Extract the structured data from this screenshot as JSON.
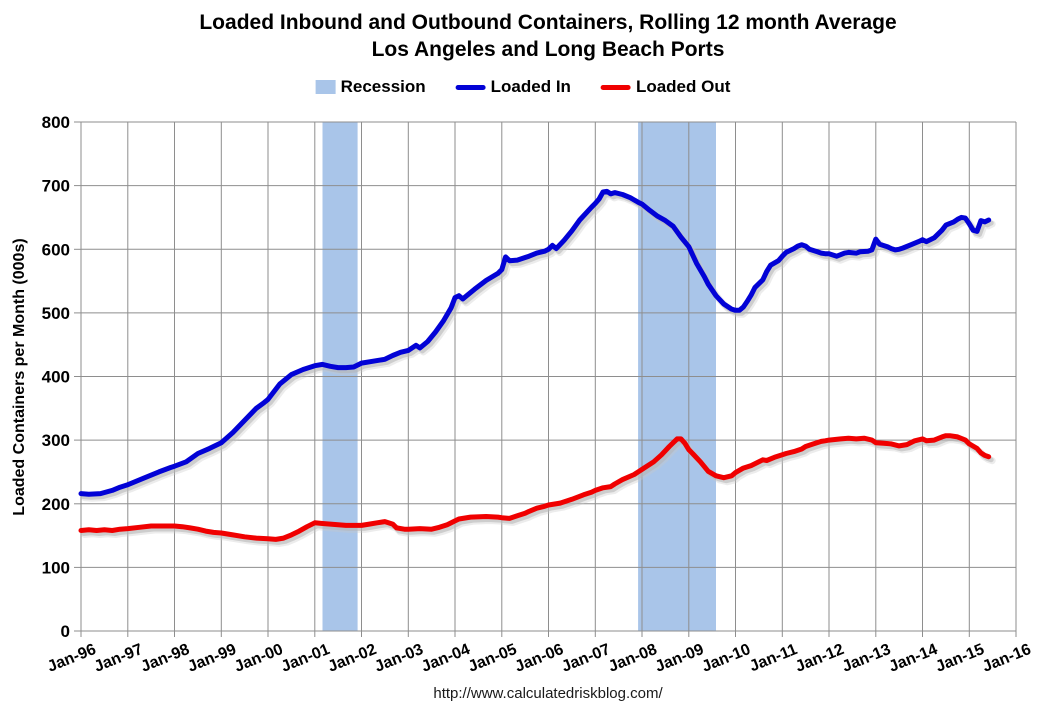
{
  "page": {
    "title_line1": "Loaded Inbound and Outbound Containers, Rolling 12 month Average",
    "title_line2": "Los Angeles and Long Beach Ports",
    "footer_url": "http://www.calculatedriskblog.com/"
  },
  "legend": {
    "items": [
      {
        "label": "Recession",
        "swatch": "recession-box",
        "color": "#a9c5e9"
      },
      {
        "label": "Loaded In",
        "swatch": "line",
        "color": "#0202d6"
      },
      {
        "label": "Loaded Out",
        "swatch": "line",
        "color": "#f00000"
      }
    ]
  },
  "chart_data": {
    "type": "line",
    "title": "Loaded Inbound and Outbound Containers, Rolling 12 month Average — Los Angeles and Long Beach Ports",
    "xlabel": "",
    "ylabel": "Loaded Containers per Month (000s)",
    "ylim": [
      0,
      800
    ],
    "yticks": [
      0,
      100,
      200,
      300,
      400,
      500,
      600,
      700,
      800
    ],
    "grid": true,
    "legend_position": "top",
    "x_unit": "months since Jan-1996 (0 = Jan-96)",
    "xtick_labels": [
      "Jan-96",
      "Jan-97",
      "Jan-98",
      "Jan-99",
      "Jan-00",
      "Jan-01",
      "Jan-02",
      "Jan-03",
      "Jan-04",
      "Jan-05",
      "Jan-06",
      "Jan-07",
      "Jan-08",
      "Jan-09",
      "Jan-10",
      "Jan-11",
      "Jan-12",
      "Jan-13",
      "Jan-14",
      "Jan-15",
      "Jan-16"
    ],
    "recession_bands_months": [
      [
        62,
        71
      ],
      [
        143,
        163
      ]
    ],
    "recession_color": "#a9c5e9",
    "grid_color": "#8e8e8e",
    "series": [
      {
        "name": "Loaded In",
        "color": "#0202d6",
        "points": [
          [
            0,
            216
          ],
          [
            2,
            215
          ],
          [
            5,
            216
          ],
          [
            8,
            221
          ],
          [
            10,
            226
          ],
          [
            12,
            230
          ],
          [
            16,
            240
          ],
          [
            20,
            250
          ],
          [
            23,
            257
          ],
          [
            24,
            259
          ],
          [
            27,
            266
          ],
          [
            30,
            279
          ],
          [
            33,
            287
          ],
          [
            36,
            296
          ],
          [
            39,
            312
          ],
          [
            42,
            331
          ],
          [
            45,
            350
          ],
          [
            47,
            359
          ],
          [
            48,
            364
          ],
          [
            51,
            388
          ],
          [
            54,
            403
          ],
          [
            57,
            411
          ],
          [
            59,
            415
          ],
          [
            60,
            417
          ],
          [
            62,
            419
          ],
          [
            64,
            416
          ],
          [
            66,
            414
          ],
          [
            68,
            414
          ],
          [
            70,
            415
          ],
          [
            72,
            421
          ],
          [
            75,
            424
          ],
          [
            78,
            427
          ],
          [
            80,
            433
          ],
          [
            82,
            438
          ],
          [
            84,
            441
          ],
          [
            86,
            449
          ],
          [
            87,
            445
          ],
          [
            89,
            455
          ],
          [
            91,
            470
          ],
          [
            93,
            487
          ],
          [
            95,
            508
          ],
          [
            96,
            524
          ],
          [
            97,
            527
          ],
          [
            98,
            522
          ],
          [
            99,
            527
          ],
          [
            101,
            537
          ],
          [
            104,
            551
          ],
          [
            107,
            562
          ],
          [
            108,
            568
          ],
          [
            109,
            588
          ],
          [
            110,
            582
          ],
          [
            112,
            583
          ],
          [
            115,
            589
          ],
          [
            117,
            594
          ],
          [
            119,
            597
          ],
          [
            120,
            600
          ],
          [
            121,
            606
          ],
          [
            122,
            601
          ],
          [
            124,
            614
          ],
          [
            126,
            629
          ],
          [
            128,
            646
          ],
          [
            131,
            666
          ],
          [
            132,
            672
          ],
          [
            133,
            679
          ],
          [
            134,
            690
          ],
          [
            135,
            691
          ],
          [
            136,
            687
          ],
          [
            137,
            689
          ],
          [
            139,
            686
          ],
          [
            141,
            681
          ],
          [
            143,
            674
          ],
          [
            144,
            671
          ],
          [
            146,
            661
          ],
          [
            148,
            652
          ],
          [
            150,
            645
          ],
          [
            152,
            636
          ],
          [
            154,
            619
          ],
          [
            156,
            604
          ],
          [
            158,
            578
          ],
          [
            160,
            557
          ],
          [
            161,
            545
          ],
          [
            163,
            527
          ],
          [
            165,
            514
          ],
          [
            167,
            506
          ],
          [
            168,
            504
          ],
          [
            169,
            504
          ],
          [
            170,
            509
          ],
          [
            171,
            518
          ],
          [
            172,
            528
          ],
          [
            173,
            540
          ],
          [
            175,
            552
          ],
          [
            176,
            565
          ],
          [
            177,
            575
          ],
          [
            179,
            582
          ],
          [
            180,
            589
          ],
          [
            181,
            595
          ],
          [
            183,
            601
          ],
          [
            184,
            605
          ],
          [
            185,
            607
          ],
          [
            186,
            605
          ],
          [
            187,
            600
          ],
          [
            189,
            596
          ],
          [
            190,
            594
          ],
          [
            191,
            593
          ],
          [
            192,
            593
          ],
          [
            194,
            589
          ],
          [
            196,
            594
          ],
          [
            197,
            595
          ],
          [
            199,
            594
          ],
          [
            200,
            596
          ],
          [
            202,
            597
          ],
          [
            203,
            599
          ],
          [
            204,
            616
          ],
          [
            205,
            608
          ],
          [
            207,
            604
          ],
          [
            208,
            601
          ],
          [
            209,
            599
          ],
          [
            210,
            600
          ],
          [
            211,
            602
          ],
          [
            213,
            607
          ],
          [
            215,
            612
          ],
          [
            216,
            615
          ],
          [
            217,
            612
          ],
          [
            219,
            618
          ],
          [
            221,
            630
          ],
          [
            222,
            638
          ],
          [
            224,
            643
          ],
          [
            225,
            647
          ],
          [
            226,
            650
          ],
          [
            227,
            649
          ],
          [
            228,
            640
          ],
          [
            229,
            630
          ],
          [
            230,
            628
          ],
          [
            231,
            645
          ],
          [
            232,
            643
          ],
          [
            233,
            646
          ]
        ]
      },
      {
        "name": "Loaded Out",
        "color": "#f00000",
        "points": [
          [
            0,
            158
          ],
          [
            2,
            159
          ],
          [
            4,
            158
          ],
          [
            6,
            159
          ],
          [
            8,
            158
          ],
          [
            10,
            160
          ],
          [
            12,
            161
          ],
          [
            15,
            163
          ],
          [
            18,
            165
          ],
          [
            21,
            165
          ],
          [
            24,
            165
          ],
          [
            26,
            164
          ],
          [
            28,
            162
          ],
          [
            30,
            160
          ],
          [
            32,
            157
          ],
          [
            34,
            155
          ],
          [
            36,
            154
          ],
          [
            39,
            151
          ],
          [
            42,
            148
          ],
          [
            45,
            146
          ],
          [
            48,
            145
          ],
          [
            50,
            144
          ],
          [
            52,
            146
          ],
          [
            54,
            151
          ],
          [
            56,
            157
          ],
          [
            58,
            164
          ],
          [
            60,
            170
          ],
          [
            62,
            169
          ],
          [
            64,
            168
          ],
          [
            66,
            167
          ],
          [
            68,
            166
          ],
          [
            70,
            166
          ],
          [
            72,
            166
          ],
          [
            74,
            168
          ],
          [
            76,
            170
          ],
          [
            78,
            172
          ],
          [
            80,
            168
          ],
          [
            81,
            162
          ],
          [
            83,
            160
          ],
          [
            84,
            160
          ],
          [
            87,
            161
          ],
          [
            90,
            160
          ],
          [
            92,
            163
          ],
          [
            94,
            167
          ],
          [
            96,
            173
          ],
          [
            97,
            176
          ],
          [
            100,
            179
          ],
          [
            104,
            180
          ],
          [
            107,
            179
          ],
          [
            108,
            178
          ],
          [
            110,
            177
          ],
          [
            112,
            181
          ],
          [
            114,
            185
          ],
          [
            115,
            188
          ],
          [
            117,
            193
          ],
          [
            119,
            196
          ],
          [
            120,
            198
          ],
          [
            123,
            201
          ],
          [
            126,
            207
          ],
          [
            129,
            214
          ],
          [
            131,
            218
          ],
          [
            132,
            221
          ],
          [
            134,
            225
          ],
          [
            136,
            227
          ],
          [
            137,
            231
          ],
          [
            139,
            238
          ],
          [
            142,
            246
          ],
          [
            143,
            250
          ],
          [
            144,
            254
          ],
          [
            147,
            266
          ],
          [
            149,
            277
          ],
          [
            151,
            290
          ],
          [
            153,
            302
          ],
          [
            154,
            302
          ],
          [
            155,
            295
          ],
          [
            156,
            285
          ],
          [
            157,
            279
          ],
          [
            159,
            266
          ],
          [
            161,
            251
          ],
          [
            163,
            244
          ],
          [
            165,
            241
          ],
          [
            167,
            244
          ],
          [
            168,
            249
          ],
          [
            170,
            256
          ],
          [
            172,
            260
          ],
          [
            174,
            266
          ],
          [
            175,
            269
          ],
          [
            176,
            268
          ],
          [
            178,
            273
          ],
          [
            180,
            277
          ],
          [
            181,
            279
          ],
          [
            183,
            282
          ],
          [
            185,
            286
          ],
          [
            186,
            290
          ],
          [
            188,
            294
          ],
          [
            190,
            298
          ],
          [
            191,
            299
          ],
          [
            192,
            300
          ],
          [
            195,
            302
          ],
          [
            197,
            303
          ],
          [
            199,
            302
          ],
          [
            201,
            303
          ],
          [
            203,
            300
          ],
          [
            204,
            296
          ],
          [
            206,
            295
          ],
          [
            208,
            294
          ],
          [
            210,
            291
          ],
          [
            212,
            293
          ],
          [
            214,
            299
          ],
          [
            216,
            302
          ],
          [
            217,
            299
          ],
          [
            219,
            300
          ],
          [
            221,
            305
          ],
          [
            222,
            307
          ],
          [
            223,
            307
          ],
          [
            225,
            305
          ],
          [
            227,
            300
          ],
          [
            228,
            294
          ],
          [
            230,
            287
          ],
          [
            231,
            280
          ],
          [
            232,
            276
          ],
          [
            233,
            274
          ]
        ]
      }
    ]
  }
}
